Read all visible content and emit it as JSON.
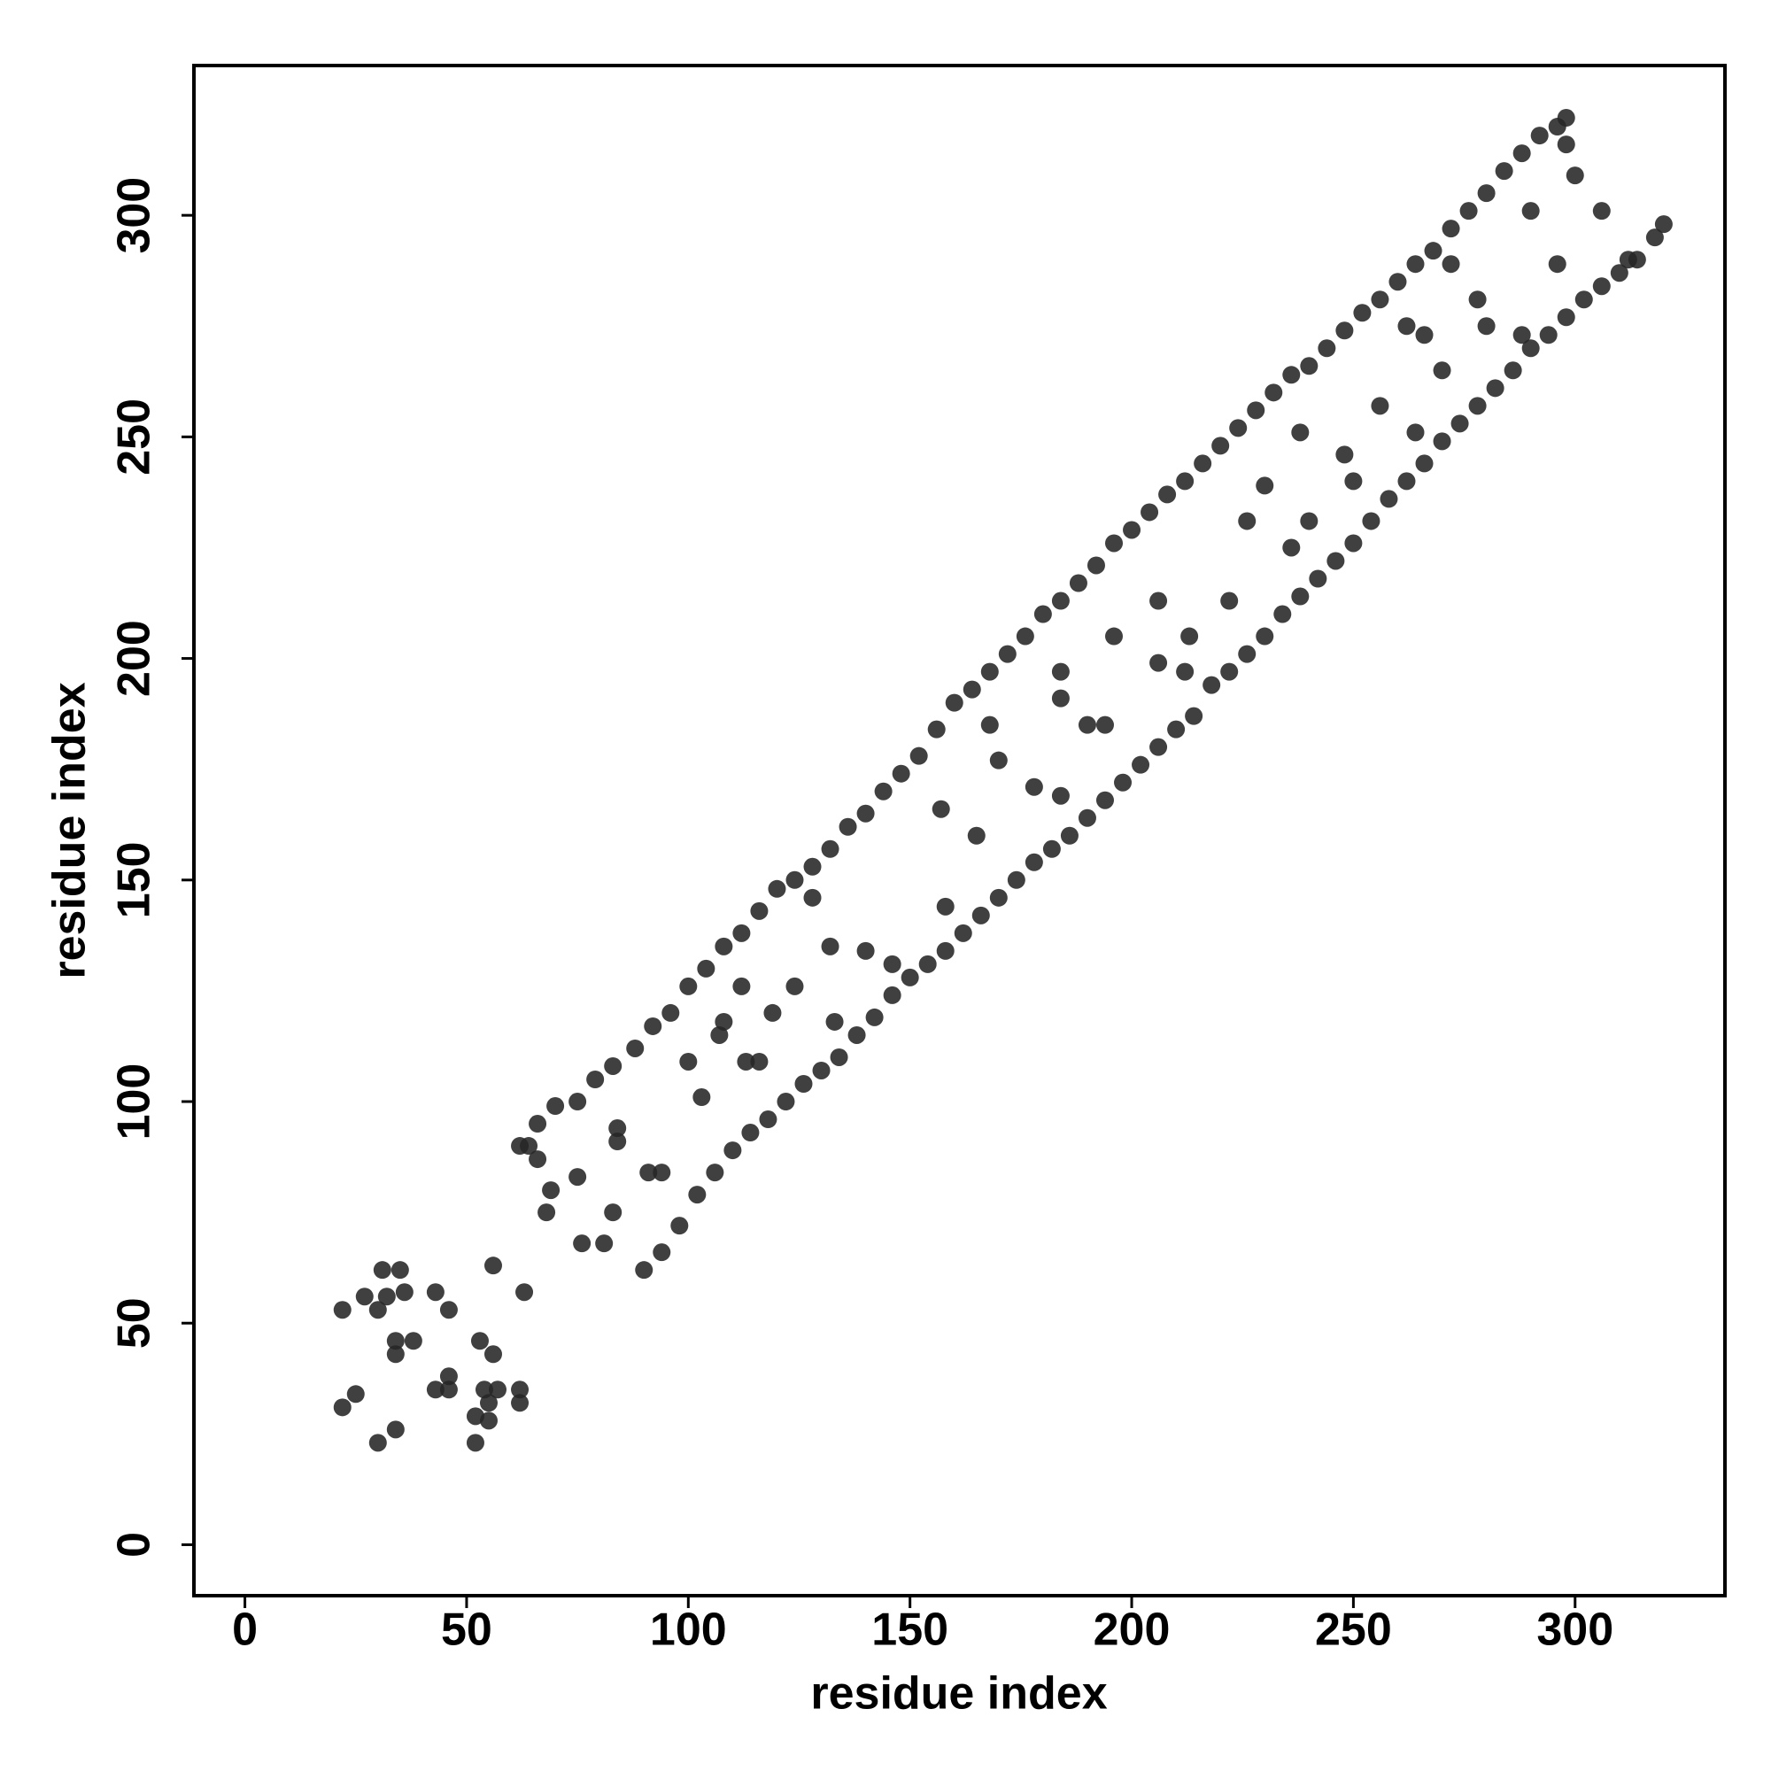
{
  "chart_data": {
    "type": "scatter",
    "x_label": "residue index",
    "y_label": "residue index",
    "color": "#262626",
    "xlim": [
      -11.5,
      333.8
    ],
    "ylim": [
      -11.5,
      333.8
    ],
    "xticks": [
      0,
      50,
      100,
      150,
      200,
      250,
      300
    ],
    "yticks": [
      0,
      50,
      100,
      150,
      200,
      250,
      300
    ],
    "x": [
      62,
      66,
      70,
      75,
      79,
      83,
      88,
      92,
      96,
      100,
      104,
      108,
      112,
      116,
      120,
      124,
      128,
      132,
      136,
      140,
      144,
      148,
      152,
      156,
      160,
      164,
      168,
      172,
      176,
      180,
      184,
      188,
      192,
      196,
      200,
      204,
      208,
      212,
      216,
      220,
      224,
      228,
      232,
      236,
      240,
      244,
      248,
      252,
      256,
      260,
      264,
      268,
      272,
      276,
      280,
      284,
      288,
      292,
      296,
      298,
      90,
      94,
      98,
      102,
      106,
      110,
      114,
      118,
      122,
      126,
      130,
      134,
      138,
      142,
      146,
      150,
      154,
      158,
      162,
      166,
      170,
      174,
      178,
      182,
      186,
      190,
      194,
      198,
      202,
      206,
      210,
      214,
      218,
      222,
      226,
      230,
      234,
      238,
      242,
      246,
      250,
      254,
      258,
      262,
      266,
      270,
      274,
      278,
      282,
      286,
      290,
      294,
      298,
      302,
      306,
      310,
      314,
      318,
      320,
      69,
      68,
      75,
      76,
      81,
      83,
      84,
      84,
      91,
      94,
      100,
      103,
      107,
      108,
      112,
      113,
      116,
      119,
      124,
      128,
      132,
      133,
      140,
      146,
      157,
      158,
      165,
      168,
      170,
      178,
      184,
      184,
      184,
      190,
      194,
      196,
      206,
      206,
      213,
      212,
      222,
      226,
      230,
      236,
      238,
      240,
      248,
      250,
      256,
      262,
      264,
      266,
      270,
      272,
      278,
      280,
      288,
      290,
      296,
      298,
      300,
      306,
      312,
      22,
      22,
      25,
      27,
      30,
      30,
      31,
      32,
      34,
      34,
      34,
      35,
      36,
      38,
      43,
      43,
      46,
      46,
      46,
      52,
      52,
      53,
      54,
      55,
      55,
      56,
      56,
      57,
      62,
      62,
      63,
      64,
      66
    ],
    "values": [
      90,
      95,
      99,
      100,
      105,
      108,
      112,
      117,
      120,
      126,
      130,
      135,
      138,
      143,
      148,
      150,
      153,
      157,
      162,
      165,
      170,
      174,
      178,
      184,
      190,
      193,
      197,
      201,
      205,
      210,
      213,
      217,
      221,
      226,
      229,
      233,
      237,
      240,
      244,
      248,
      252,
      256,
      260,
      264,
      266,
      270,
      274,
      278,
      281,
      285,
      289,
      292,
      297,
      301,
      305,
      310,
      314,
      318,
      320,
      322,
      62,
      66,
      72,
      79,
      84,
      89,
      93,
      96,
      100,
      104,
      107,
      110,
      115,
      119,
      124,
      128,
      131,
      134,
      138,
      142,
      146,
      150,
      154,
      157,
      160,
      164,
      168,
      172,
      176,
      180,
      184,
      187,
      194,
      197,
      201,
      205,
      210,
      214,
      218,
      222,
      226,
      231,
      236,
      240,
      244,
      249,
      253,
      257,
      261,
      265,
      270,
      273,
      277,
      281,
      284,
      287,
      290,
      295,
      298,
      80,
      75,
      83,
      68,
      68,
      75,
      91,
      94,
      84,
      84,
      109,
      101,
      115,
      118,
      126,
      109,
      109,
      120,
      126,
      146,
      135,
      118,
      134,
      131,
      166,
      144,
      160,
      185,
      177,
      171,
      197,
      191,
      169,
      185,
      185,
      205,
      213,
      199,
      205,
      197,
      213,
      231,
      239,
      225,
      251,
      231,
      246,
      240,
      257,
      275,
      251,
      273,
      265,
      289,
      281,
      275,
      273,
      301,
      289,
      316,
      309,
      301,
      290,
      31,
      53,
      34,
      56,
      53,
      23,
      62,
      56,
      26,
      43,
      46,
      62,
      57,
      46,
      57,
      35,
      35,
      38,
      53,
      23,
      29,
      46,
      35,
      32,
      28,
      63,
      43,
      35,
      32,
      35,
      57,
      90,
      87
    ]
  }
}
